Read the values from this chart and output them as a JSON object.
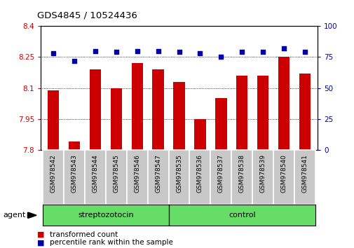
{
  "title": "GDS4845 / 10524436",
  "samples": [
    "GSM978542",
    "GSM978543",
    "GSM978544",
    "GSM978545",
    "GSM978546",
    "GSM978547",
    "GSM978535",
    "GSM978536",
    "GSM978537",
    "GSM978538",
    "GSM978539",
    "GSM978540",
    "GSM978541"
  ],
  "red_values": [
    8.09,
    7.84,
    8.19,
    8.1,
    8.22,
    8.19,
    8.13,
    7.95,
    8.05,
    8.16,
    8.16,
    8.25,
    8.17
  ],
  "blue_values": [
    78,
    72,
    80,
    79,
    80,
    80,
    79,
    78,
    75,
    79,
    79,
    82,
    79
  ],
  "ylim_left": [
    7.8,
    8.4
  ],
  "ylim_right": [
    0,
    100
  ],
  "yticks_left": [
    7.8,
    7.95,
    8.1,
    8.25,
    8.4
  ],
  "yticks_right": [
    0,
    25,
    50,
    75,
    100
  ],
  "ytick_labels_left": [
    "7.8",
    "7.95",
    "8.1",
    "8.25",
    "8.4"
  ],
  "ytick_labels_right": [
    "0",
    "25",
    "50",
    "75",
    "100"
  ],
  "groups": [
    {
      "label": "streptozotocin",
      "start": 0,
      "end": 6
    },
    {
      "label": "control",
      "start": 6,
      "end": 13
    }
  ],
  "group_color": "#66DD66",
  "agent_label": "agent",
  "red_color": "#CC0000",
  "blue_color": "#0000AA",
  "bar_width": 0.55,
  "tick_area_color": "#C8C8C8",
  "legend_red_label": "transformed count",
  "legend_blue_label": "percentile rank within the sample"
}
